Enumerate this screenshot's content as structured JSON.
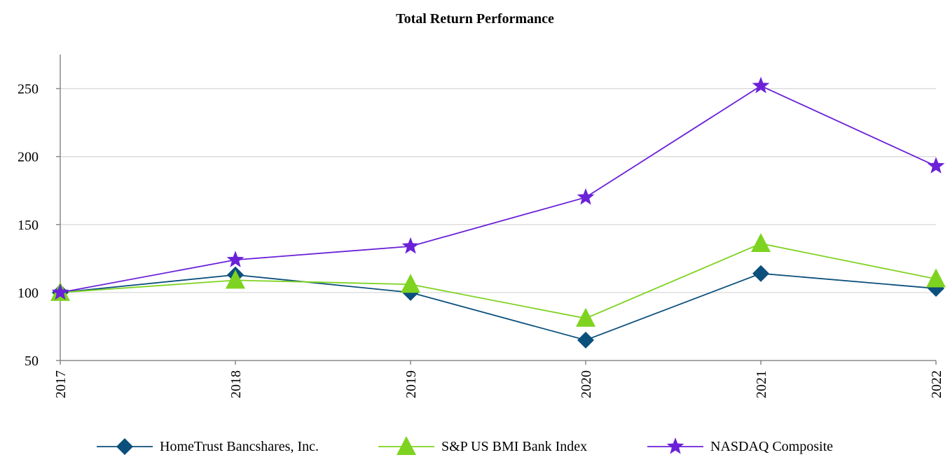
{
  "chart_data": {
    "type": "line",
    "title": "Total Return Performance",
    "xlabel": "",
    "ylabel": "",
    "categories": [
      "2017",
      "2018",
      "2019",
      "2020",
      "2021",
      "2022"
    ],
    "ylim": [
      50,
      275
    ],
    "yticks": [
      50,
      100,
      150,
      200,
      250
    ],
    "grid": true,
    "legend_position": "bottom",
    "series": [
      {
        "name": "HomeTrust Bancshares, Inc.",
        "values": [
          100,
          113,
          100,
          65,
          114,
          103
        ],
        "color": "#0b4f7c",
        "marker": "diamond"
      },
      {
        "name": "S&P US BMI Bank Index",
        "values": [
          100,
          109,
          106,
          81,
          136,
          110
        ],
        "color": "#7ed321",
        "marker": "triangle"
      },
      {
        "name": "NASDAQ Composite",
        "values": [
          100,
          124,
          134,
          170,
          252,
          193
        ],
        "color": "#6b21d8",
        "marker": "star"
      }
    ]
  }
}
